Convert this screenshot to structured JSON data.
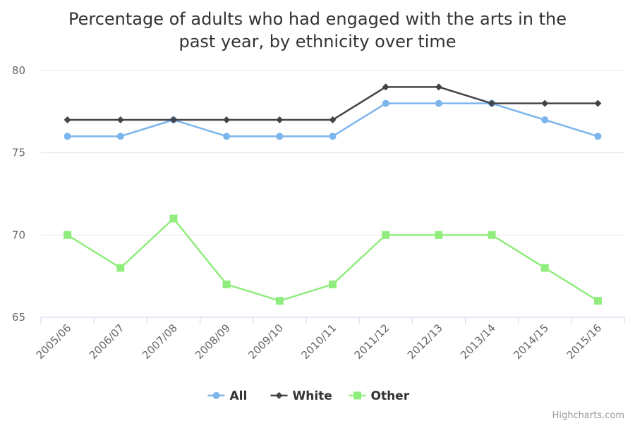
{
  "chart_data": {
    "type": "line",
    "title": "Percentage of adults who had engaged with the arts in the past year, by ethnicity over time",
    "title_lines": [
      "Percentage of adults who had engaged with the arts in the",
      "past year, by ethnicity over time"
    ],
    "categories": [
      "2005/06",
      "2006/07",
      "2007/08",
      "2008/09",
      "2009/10",
      "2010/11",
      "2011/12",
      "2012/13",
      "2013/14",
      "2014/15",
      "2015/16"
    ],
    "ylim": [
      65,
      80
    ],
    "yticks": [
      65,
      70,
      75,
      80
    ],
    "grid": true,
    "legend_position": "bottom-center",
    "series": [
      {
        "name": "All",
        "color": "#7cb5ec",
        "marker": "circle",
        "values": [
          76,
          76,
          77,
          76,
          76,
          76,
          78,
          78,
          78,
          77,
          76
        ]
      },
      {
        "name": "White",
        "color": "#434348",
        "marker": "diamond",
        "values": [
          77,
          77,
          77,
          77,
          77,
          77,
          79,
          79,
          78,
          78,
          78
        ]
      },
      {
        "name": "Other",
        "color": "#90ed7d",
        "marker": "square",
        "values": [
          70,
          68,
          71,
          67,
          66,
          67,
          70,
          70,
          70,
          68,
          66
        ]
      }
    ],
    "credits": "Highcharts.com"
  }
}
